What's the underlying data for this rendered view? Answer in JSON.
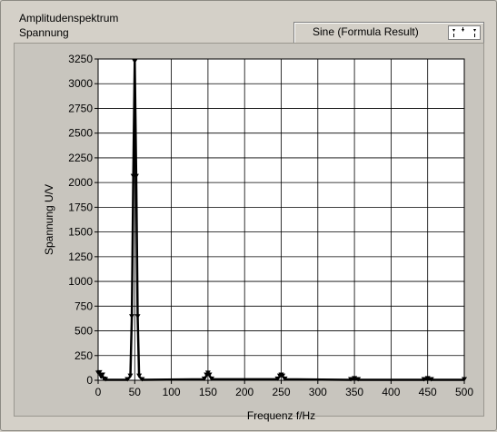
{
  "chart_data": {
    "type": "line",
    "title": "Amplitudenspektrum",
    "subtitle": "Spannung",
    "xlabel": "Frequenz f/Hz",
    "ylabel": "Spannung U/V",
    "xlim": [
      0,
      500
    ],
    "ylim": [
      0,
      3250
    ],
    "x_ticks": [
      0,
      50,
      100,
      150,
      200,
      250,
      300,
      350,
      400,
      450,
      500
    ],
    "y_ticks": [
      0,
      250,
      500,
      750,
      1000,
      1250,
      1500,
      1750,
      2000,
      2250,
      2500,
      2750,
      3000,
      3250
    ],
    "grid": true,
    "legend_position": "top-right",
    "series": [
      {
        "name": "Sine (Formula Result)",
        "color": "#000000",
        "x": [
          0,
          2,
          4,
          6,
          8,
          10,
          40,
          44,
          46,
          48,
          50,
          52,
          54,
          56,
          60,
          145,
          148,
          150,
          152,
          155,
          245,
          248,
          250,
          252,
          255,
          345,
          350,
          355,
          445,
          450,
          455,
          500
        ],
        "y": [
          70,
          75,
          30,
          50,
          10,
          5,
          5,
          40,
          640,
          2060,
          3220,
          2060,
          640,
          40,
          5,
          10,
          50,
          70,
          50,
          10,
          10,
          40,
          50,
          40,
          10,
          5,
          15,
          5,
          5,
          15,
          5,
          5
        ]
      }
    ]
  }
}
